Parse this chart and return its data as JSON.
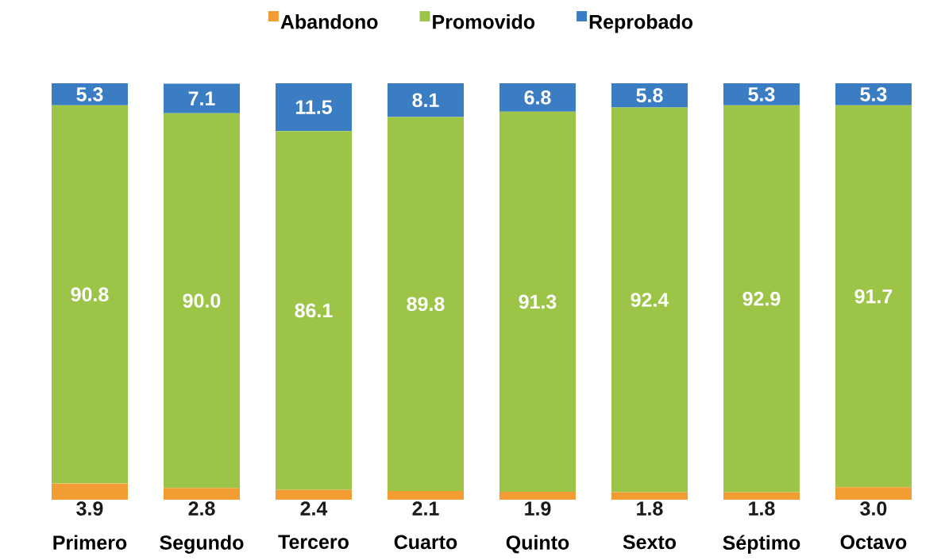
{
  "chart_data": {
    "type": "bar",
    "stacked": true,
    "legend": "top",
    "tick_labels": "x",
    "categories": [
      "Primero",
      "Segundo",
      "Tercero",
      "Cuarto",
      "Quinto",
      "Sexto",
      "Séptimo",
      "Octavo"
    ],
    "series": [
      {
        "name": "Abandono",
        "color": "#f39c34",
        "values": [
          3.9,
          2.8,
          2.4,
          2.1,
          1.9,
          1.8,
          1.8,
          3.0
        ],
        "value_labels": [
          "3.9",
          "2.8",
          "2.4",
          "2.1",
          "1.9",
          "1.8",
          "1.8",
          "3.0"
        ]
      },
      {
        "name": "Promovido",
        "color": "#9cc548",
        "values": [
          90.8,
          90.0,
          86.1,
          89.8,
          91.3,
          92.4,
          92.9,
          91.7
        ],
        "value_labels": [
          "90.8",
          "90.0",
          "86.1",
          "89.8",
          "91.3",
          "92.4",
          "92.9",
          "91.7"
        ]
      },
      {
        "name": "Reprobado",
        "color": "#3a7dc2",
        "values": [
          5.3,
          7.1,
          11.5,
          8.1,
          6.8,
          5.8,
          5.3,
          5.3
        ],
        "value_labels": [
          "5.3",
          "7.1",
          "11.5",
          "8.1",
          "6.8",
          "5.8",
          "5.3",
          "5.3"
        ]
      }
    ]
  }
}
